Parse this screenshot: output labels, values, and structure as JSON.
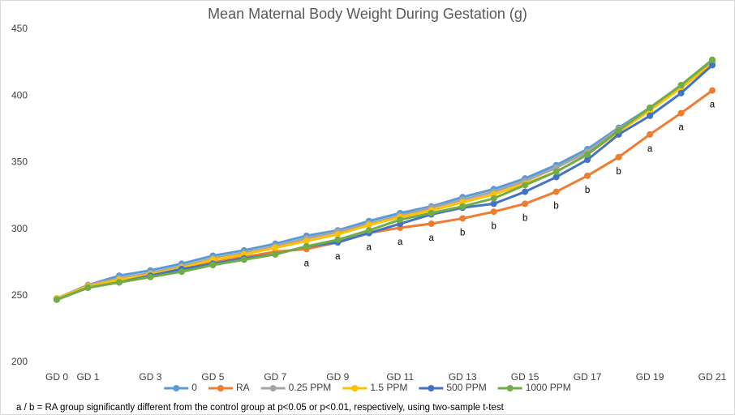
{
  "chart_data": {
    "type": "line",
    "title": "Mean Maternal Body Weight During Gestation (g)",
    "categories": [
      "GD 0",
      "GD 1",
      null,
      "GD 3",
      null,
      "GD 5",
      null,
      "GD 7",
      null,
      "GD 9",
      null,
      "GD 11",
      null,
      "GD 13",
      null,
      "GD 15",
      null,
      "GD 17",
      null,
      "GD 19",
      null,
      "GD 21"
    ],
    "ylim": [
      200,
      450
    ],
    "yticks": [
      200,
      250,
      300,
      350,
      400,
      450
    ],
    "grid": false,
    "legend": "bottom",
    "series": [
      {
        "name": "0",
        "color": "#5b9bd5",
        "values": [
          248,
          258,
          265,
          269,
          274,
          280,
          284,
          289,
          295,
          299,
          306,
          312,
          317,
          324,
          330,
          338,
          348,
          360,
          376,
          391,
          408,
          427
        ]
      },
      {
        "name": "RA",
        "color": "#ed7d31",
        "values": [
          248,
          257,
          261,
          265,
          270,
          275,
          279,
          283,
          285,
          290,
          297,
          301,
          304,
          308,
          313,
          319,
          328,
          340,
          354,
          371,
          387,
          404
        ],
        "point_labels": [
          null,
          null,
          null,
          null,
          null,
          null,
          null,
          null,
          "a",
          "a",
          "a",
          "a",
          "a",
          "b",
          "b",
          "b",
          "b",
          "b",
          "b",
          "a",
          "a",
          "a"
        ]
      },
      {
        "name": "0.25 PPM",
        "color": "#a5a5a5",
        "values": [
          248,
          258,
          263,
          267,
          272,
          278,
          282,
          287,
          293,
          298,
          304,
          310,
          316,
          322,
          328,
          336,
          346,
          358,
          375,
          390,
          407,
          426
        ]
      },
      {
        "name": "1.5 PPM",
        "color": "#ffc000",
        "values": [
          248,
          257,
          262,
          266,
          271,
          277,
          281,
          286,
          291,
          296,
          303,
          309,
          314,
          320,
          326,
          334,
          343,
          356,
          373,
          389,
          406,
          424
        ]
      },
      {
        "name": "500 PPM",
        "color": "#4472c4",
        "values": [
          247,
          256,
          260,
          265,
          270,
          274,
          278,
          281,
          287,
          290,
          297,
          304,
          311,
          316,
          319,
          328,
          339,
          352,
          371,
          385,
          402,
          423
        ]
      },
      {
        "name": "1000 PPM",
        "color": "#70ad47",
        "values": [
          247,
          256,
          260,
          264,
          268,
          273,
          277,
          281,
          287,
          292,
          299,
          307,
          312,
          317,
          323,
          333,
          343,
          356,
          374,
          391,
          408,
          427
        ]
      }
    ],
    "footnote": "a / b = RA group significantly different from the control group at p<0.05 or p<0.01, respectively, using two-sample t-test"
  }
}
